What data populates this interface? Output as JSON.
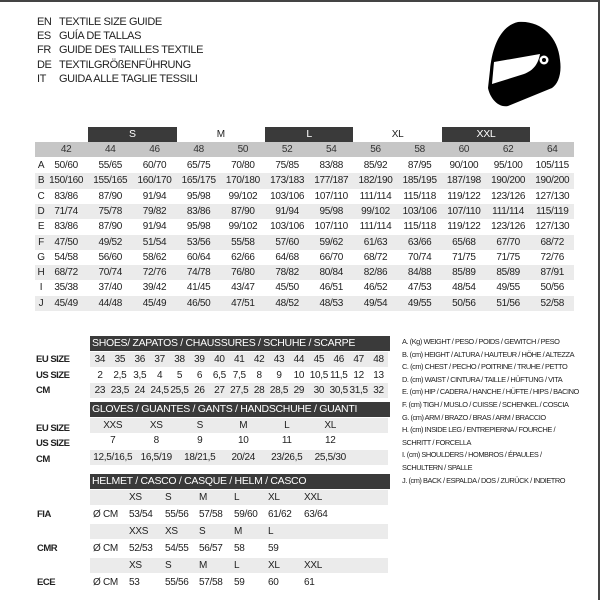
{
  "titles": [
    {
      "lang": "EN",
      "text": "TEXTILE SIZE GUIDE"
    },
    {
      "lang": "ES",
      "text": "GUÍA DE TALLAS"
    },
    {
      "lang": "FR",
      "text": "GUIDE DES TAILLES TEXTILE"
    },
    {
      "lang": "DE",
      "text": "TEXTILGRÖßENFÜHRUNG"
    },
    {
      "lang": "IT",
      "text": "GUIDA ALLE TAGLIE TESSILI"
    }
  ],
  "icon": "helmet-icon",
  "textile": {
    "size_groups": [
      {
        "label": "S",
        "dark": true
      },
      {
        "label": "M",
        "dark": false
      },
      {
        "label": "L",
        "dark": true
      },
      {
        "label": "XL",
        "dark": false
      },
      {
        "label": "XXL",
        "dark": true
      }
    ],
    "columns": [
      "42",
      "44",
      "46",
      "48",
      "50",
      "52",
      "54",
      "56",
      "58",
      "60",
      "62",
      "64"
    ],
    "rows": [
      {
        "key": "A",
        "values": [
          "50/60",
          "55/65",
          "60/70",
          "65/75",
          "70/80",
          "75/85",
          "83/88",
          "85/92",
          "87/95",
          "90/100",
          "95/100",
          "105/115"
        ]
      },
      {
        "key": "B",
        "values": [
          "150/160",
          "155/165",
          "160/170",
          "165/175",
          "170/180",
          "173/183",
          "177/187",
          "182/190",
          "185/195",
          "187/198",
          "190/200",
          "190/200"
        ]
      },
      {
        "key": "C",
        "values": [
          "83/86",
          "87/90",
          "91/94",
          "95/98",
          "99/102",
          "103/106",
          "107/110",
          "111/114",
          "115/118",
          "119/122",
          "123/126",
          "127/130"
        ]
      },
      {
        "key": "D",
        "values": [
          "71/74",
          "75/78",
          "79/82",
          "83/86",
          "87/90",
          "91/94",
          "95/98",
          "99/102",
          "103/106",
          "107/110",
          "111/114",
          "115/119"
        ]
      },
      {
        "key": "E",
        "values": [
          "83/86",
          "87/90",
          "91/94",
          "95/98",
          "99/102",
          "103/106",
          "107/110",
          "111/114",
          "115/118",
          "119/122",
          "123/126",
          "127/130"
        ]
      },
      {
        "key": "F",
        "values": [
          "47/50",
          "49/52",
          "51/54",
          "53/56",
          "55/58",
          "57/60",
          "59/62",
          "61/63",
          "63/66",
          "65/68",
          "67/70",
          "68/72"
        ]
      },
      {
        "key": "G",
        "values": [
          "54/58",
          "56/60",
          "58/62",
          "60/64",
          "62/66",
          "64/68",
          "66/70",
          "68/72",
          "70/74",
          "71/75",
          "71/75",
          "72/76"
        ]
      },
      {
        "key": "H",
        "values": [
          "68/72",
          "70/74",
          "72/76",
          "74/78",
          "76/80",
          "78/82",
          "80/84",
          "82/86",
          "84/88",
          "85/89",
          "85/89",
          "87/91"
        ]
      },
      {
        "key": "I",
        "values": [
          "35/38",
          "37/40",
          "39/42",
          "41/45",
          "43/47",
          "45/50",
          "46/51",
          "46/52",
          "47/53",
          "48/54",
          "49/55",
          "50/56"
        ]
      },
      {
        "key": "J",
        "values": [
          "45/49",
          "44/48",
          "45/49",
          "46/50",
          "47/51",
          "48/52",
          "48/53",
          "49/54",
          "49/55",
          "50/56",
          "51/56",
          "52/58"
        ]
      }
    ]
  },
  "shoes": {
    "title": "SHOES/ ZAPATOS / CHAUSSURES / SCHUHE / SCARPE",
    "rows": [
      {
        "label": "EU SIZE",
        "values": [
          "34",
          "35",
          "36",
          "37",
          "38",
          "39",
          "40",
          "41",
          "42",
          "43",
          "44",
          "45",
          "46",
          "47",
          "48"
        ]
      },
      {
        "label": "US SIZE",
        "values": [
          "2",
          "2,5",
          "3,5",
          "4",
          "5",
          "6",
          "6,5",
          "7,5",
          "8",
          "9",
          "10",
          "10,5",
          "11,5",
          "12",
          "13"
        ]
      },
      {
        "label": "CM",
        "values": [
          "23",
          "23,5",
          "24",
          "24,5",
          "25,5",
          "26",
          "27",
          "27,5",
          "28",
          "28,5",
          "29",
          "30",
          "30,5",
          "31,5",
          "32"
        ]
      }
    ]
  },
  "gloves": {
    "title": "GLOVES / GUANTES / GANTS / HANDSCHUHE / GUANTI",
    "rows": [
      {
        "label": "EU SIZE",
        "values": [
          "XXS",
          "XS",
          "S",
          "M",
          "L",
          "XL"
        ]
      },
      {
        "label": "US SIZE",
        "values": [
          "7",
          "8",
          "9",
          "10",
          "11",
          "12"
        ]
      },
      {
        "label": "CM",
        "values": [
          "12,5/16,5",
          "16,5/19",
          "18/21,5",
          "20/24",
          "23/26,5",
          "25,5/30"
        ]
      }
    ]
  },
  "helmet": {
    "title": "HELMET / CASCO / CASQUE / HELM / CASCO",
    "unit": "Ø CM",
    "standards": [
      {
        "label": "FIA",
        "sizes": [
          "XS",
          "S",
          "M",
          "L",
          "XL",
          "XXL"
        ],
        "values": [
          "53/54",
          "55/56",
          "57/58",
          "59/60",
          "61/62",
          "63/64"
        ]
      },
      {
        "label": "CMR",
        "sizes": [
          "XXS",
          "XS",
          "S",
          "M",
          "L"
        ],
        "values": [
          "52/53",
          "54/55",
          "56/57",
          "58",
          "59"
        ]
      },
      {
        "label": "ECE",
        "sizes": [
          "XS",
          "S",
          "M",
          "L",
          "XL",
          "XXL"
        ],
        "values": [
          "53",
          "55/56",
          "57/58",
          "59",
          "60",
          "61"
        ]
      }
    ]
  },
  "legend": [
    "A. (Kg) WEIGHT / PESO / POIDS / GEWITCH / PESO",
    "B. (cm) HEIGHT / ALTURA / HAUTEUR / HÖHE / ALTEZZA",
    "C. (cm) CHEST / PECHO / POITRINE / TRUHE / PETTO",
    "D. (cm) WAIST / CINTURA / TAILLE / HÜFTUNG / VITA",
    "E. (cm) HIP / CADERA / HANCHE / HÜFTE / HIPS /  BACINO",
    "F.  (cm) TIGH / MUSLO / CUISSE / SCHENKEL / COSCIA",
    "G. (cm) ARM  / BRAZO / BRAS / ARM / BRACCIO",
    "H. (cm) INSIDE LEG / ENTREPIERNA / FOURCHE /",
    "SCHRITT / FORCELLA",
    "I.  (cm) SHOULDERS / HOMBROS / ÉPAULES /",
    "SCHULTERN / SPALLE",
    "J. (cm) BACK / ESPALDA / DOS / ZURÜCK / INDIETRO"
  ]
}
